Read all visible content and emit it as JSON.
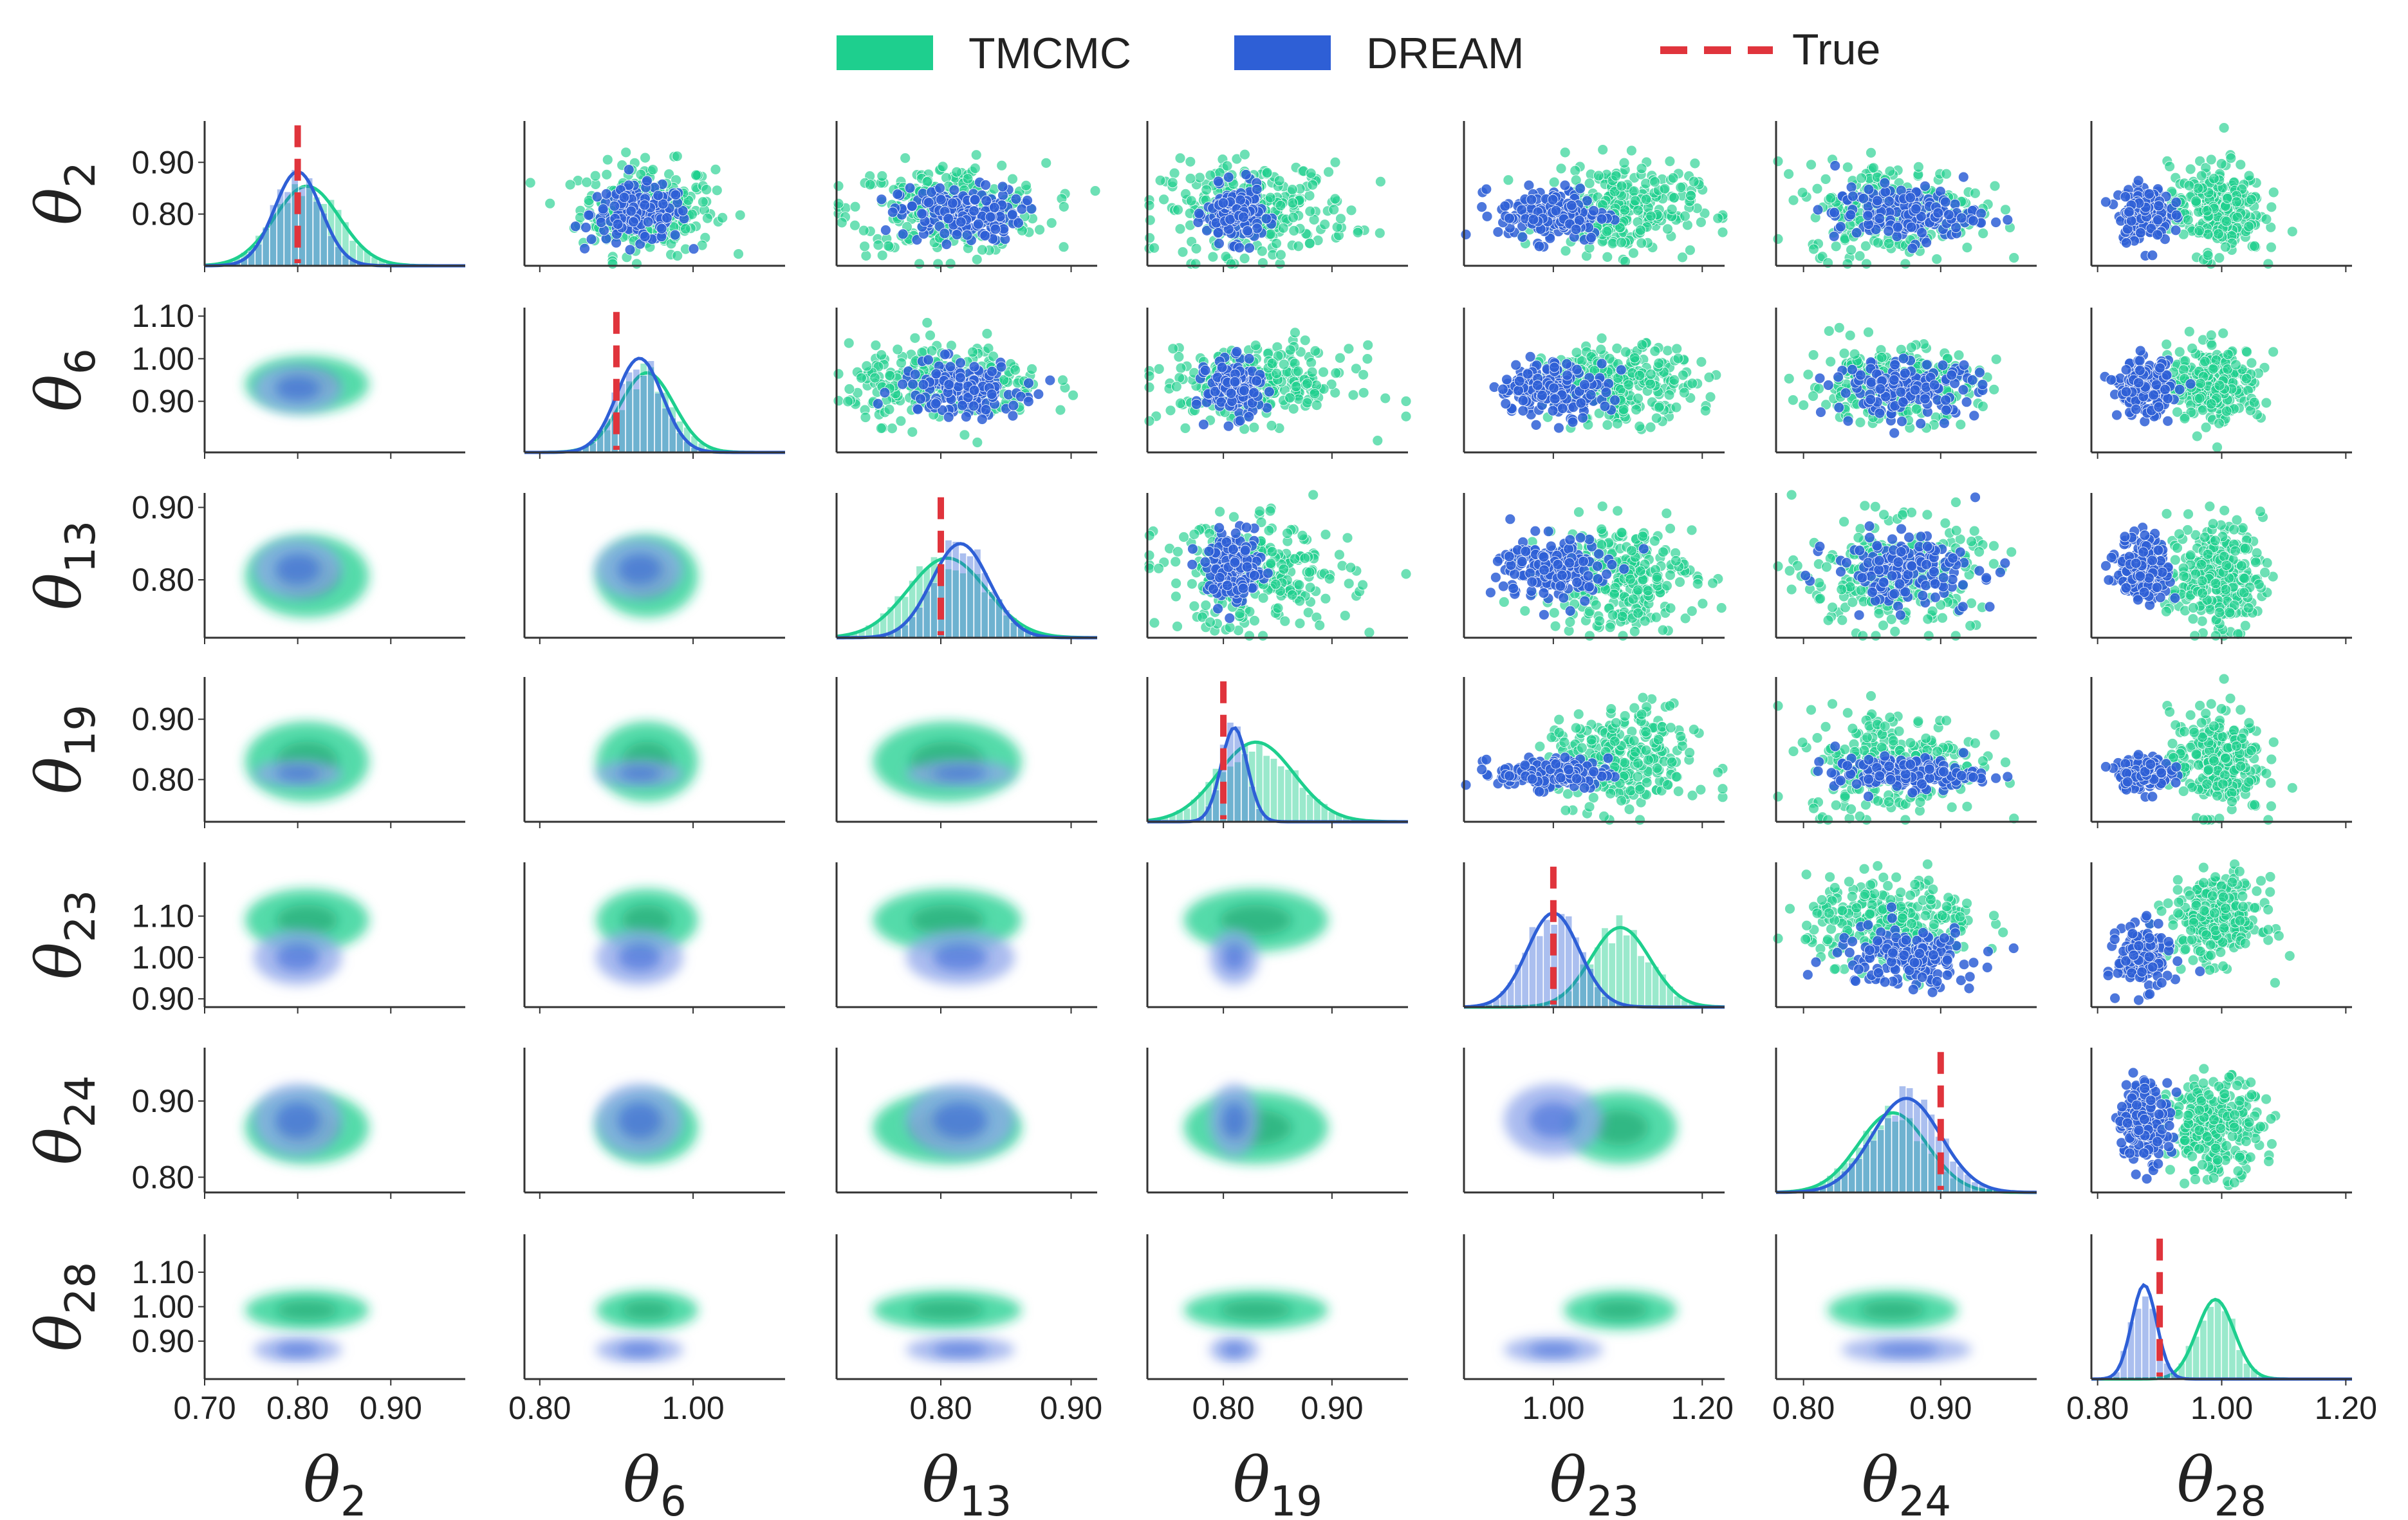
{
  "chart_data": {
    "type": "pairplot",
    "title": "",
    "legend": {
      "placement": "top-center",
      "entries": [
        {
          "key": "tmcmc",
          "label": "TMCMC",
          "color": "#1ecf8e",
          "style": "patch"
        },
        {
          "key": "dream",
          "label": "DREAM",
          "color": "#2e5fd6",
          "style": "patch"
        },
        {
          "key": "true",
          "label": "True",
          "color": "#e0343c",
          "style": "dashed-line"
        }
      ]
    },
    "parameters": [
      {
        "key": "t2",
        "symbol": "θ",
        "sub": "2",
        "true_value": 0.8,
        "axis_range": [
          0.7,
          0.98
        ],
        "x_ticks": [
          {
            "v": 0.7,
            "label": "0.70"
          },
          {
            "v": 0.8,
            "label": "0.80"
          },
          {
            "v": 0.9,
            "label": "0.90"
          }
        ],
        "y_ticks": [
          {
            "v": 0.8,
            "label": "0.80"
          },
          {
            "v": 0.9,
            "label": "0.90"
          }
        ],
        "tmcmc": {
          "mean": 0.81,
          "sd": 0.035
        },
        "dream": {
          "mean": 0.8,
          "sd": 0.025
        }
      },
      {
        "key": "t6",
        "symbol": "θ",
        "sub": "6",
        "true_value": 0.9,
        "axis_range": [
          0.78,
          1.12
        ],
        "x_ticks": [
          {
            "v": 0.8,
            "label": "0.80"
          },
          {
            "v": 1.0,
            "label": "1.00"
          }
        ],
        "y_ticks": [
          {
            "v": 0.9,
            "label": "0.90"
          },
          {
            "v": 1.0,
            "label": "1.00"
          },
          {
            "v": 1.1,
            "label": "1.10"
          }
        ],
        "tmcmc": {
          "mean": 0.94,
          "sd": 0.035
        },
        "dream": {
          "mean": 0.93,
          "sd": 0.03
        }
      },
      {
        "key": "t13",
        "symbol": "θ",
        "sub": "13",
        "true_value": 0.8,
        "axis_range": [
          0.72,
          0.92
        ],
        "x_ticks": [
          {
            "v": 0.8,
            "label": "0.80"
          },
          {
            "v": 0.9,
            "label": "0.90"
          }
        ],
        "y_ticks": [
          {
            "v": 0.8,
            "label": "0.80"
          },
          {
            "v": 0.9,
            "label": "0.90"
          }
        ],
        "tmcmc": {
          "mean": 0.805,
          "sd": 0.03
        },
        "dream": {
          "mean": 0.815,
          "sd": 0.022
        }
      },
      {
        "key": "t19",
        "symbol": "θ",
        "sub": "19",
        "true_value": 0.8,
        "axis_range": [
          0.73,
          0.97
        ],
        "x_ticks": [
          {
            "v": 0.8,
            "label": "0.80"
          },
          {
            "v": 0.9,
            "label": "0.90"
          }
        ],
        "y_ticks": [
          {
            "v": 0.8,
            "label": "0.80"
          },
          {
            "v": 0.9,
            "label": "0.90"
          }
        ],
        "tmcmc": {
          "mean": 0.83,
          "sd": 0.035
        },
        "dream": {
          "mean": 0.81,
          "sd": 0.012
        }
      },
      {
        "key": "t23",
        "symbol": "θ",
        "sub": "23",
        "true_value": 1.0,
        "axis_range": [
          0.88,
          1.23
        ],
        "x_ticks": [
          {
            "v": 1.0,
            "label": "1.00"
          },
          {
            "v": 1.2,
            "label": "1.20"
          }
        ],
        "y_ticks": [
          {
            "v": 0.9,
            "label": "0.90"
          },
          {
            "v": 1.0,
            "label": "1.00"
          },
          {
            "v": 1.1,
            "label": "1.10"
          }
        ],
        "tmcmc": {
          "mean": 1.09,
          "sd": 0.04
        },
        "dream": {
          "mean": 1.0,
          "sd": 0.035
        }
      },
      {
        "key": "t24",
        "symbol": "θ",
        "sub": "24",
        "true_value": 0.9,
        "axis_range": [
          0.78,
          0.97
        ],
        "x_ticks": [
          {
            "v": 0.8,
            "label": "0.80"
          },
          {
            "v": 0.9,
            "label": "0.90"
          }
        ],
        "y_ticks": [
          {
            "v": 0.8,
            "label": "0.80"
          },
          {
            "v": 0.9,
            "label": "0.90"
          }
        ],
        "tmcmc": {
          "mean": 0.865,
          "sd": 0.025
        },
        "dream": {
          "mean": 0.875,
          "sd": 0.025
        }
      },
      {
        "key": "t28",
        "symbol": "θ",
        "sub": "28",
        "true_value": 0.9,
        "axis_range": [
          0.79,
          1.21
        ],
        "x_ticks": [
          {
            "v": 0.8,
            "label": "0.80"
          },
          {
            "v": 1.0,
            "label": "1.00"
          },
          {
            "v": 1.2,
            "label": "1.20"
          }
        ],
        "y_ticks": [
          {
            "v": 0.9,
            "label": "0.90"
          },
          {
            "v": 1.0,
            "label": "1.00"
          },
          {
            "v": 1.1,
            "label": "1.10"
          }
        ],
        "tmcmc": {
          "mean": 0.99,
          "sd": 0.03
        },
        "dream": {
          "mean": 0.875,
          "sd": 0.02
        }
      }
    ],
    "panels": {
      "diagonal": "histogram + KDE of marginal posterior, dashed line at true value",
      "upper_triangle": "scatter of posterior samples (TMCMC under DREAM)",
      "lower_triangle": "filled bivariate KDE contours"
    },
    "grid": false
  },
  "colors": {
    "tmcmc": "#1ecf8e",
    "tmcmc_dark": "#0c9a64",
    "dream": "#2e5fd6",
    "dream_light": "#8fa5ea",
    "true": "#e0343c",
    "axis": "#333333"
  }
}
